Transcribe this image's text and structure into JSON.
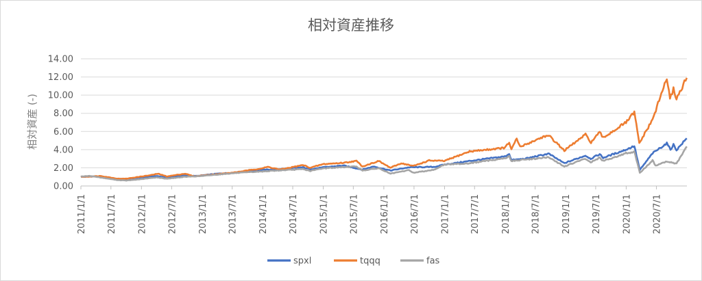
{
  "chart_data": {
    "type": "line",
    "title": "相対資産推移",
    "ylabel": "相対資産 (-)",
    "xlabel": "",
    "ylim": [
      0,
      14
    ],
    "y_ticks": [
      "0.00",
      "2.00",
      "4.00",
      "6.00",
      "8.00",
      "10.00",
      "12.00",
      "14.00"
    ],
    "x_ticks": [
      "2011/1/1",
      "2011/7/1",
      "2012/1/1",
      "2012/7/1",
      "2013/1/1",
      "2013/7/1",
      "2014/1/1",
      "2014/7/1",
      "2015/1/1",
      "2015/7/1",
      "2016/1/1",
      "2016/7/1",
      "2017/1/1",
      "2017/7/1",
      "2018/1/1",
      "2018/7/1",
      "2019/1/1",
      "2019/7/1",
      "2020/1/1",
      "2020/7/1"
    ],
    "grid": true,
    "legend_position": "bottom",
    "series": [
      {
        "name": "spxl",
        "color": "#4472C4",
        "points": [
          [
            "2011/1/1",
            1.0
          ],
          [
            "2011/4/1",
            1.05
          ],
          [
            "2011/8/1",
            0.8
          ],
          [
            "2011/10/1",
            0.75
          ],
          [
            "2012/1/1",
            0.95
          ],
          [
            "2012/4/1",
            1.1
          ],
          [
            "2012/6/1",
            0.95
          ],
          [
            "2012/9/1",
            1.15
          ],
          [
            "2012/12/1",
            1.1
          ],
          [
            "2013/4/1",
            1.35
          ],
          [
            "2013/7/1",
            1.45
          ],
          [
            "2013/12/1",
            1.75
          ],
          [
            "2014/4/1",
            1.85
          ],
          [
            "2014/9/1",
            2.05
          ],
          [
            "2014/10/15",
            1.85
          ],
          [
            "2014/12/31",
            2.05
          ],
          [
            "2015/5/1",
            2.25
          ],
          [
            "2015/8/25",
            1.8
          ],
          [
            "2015/11/1",
            2.15
          ],
          [
            "2016/2/10",
            1.7
          ],
          [
            "2016/6/1",
            2.05
          ],
          [
            "2016/11/1",
            2.1
          ],
          [
            "2016/12/31",
            2.35
          ],
          [
            "2017/6/1",
            2.75
          ],
          [
            "2017/12/31",
            3.25
          ],
          [
            "2018/1/26",
            3.55
          ],
          [
            "2018/2/8",
            2.85
          ],
          [
            "2018/5/1",
            3.0
          ],
          [
            "2018/9/20",
            3.55
          ],
          [
            "2018/12/24",
            2.5
          ],
          [
            "2019/4/30",
            3.35
          ],
          [
            "2019/6/1",
            3.0
          ],
          [
            "2019/7/25",
            3.5
          ],
          [
            "2019/8/15",
            3.1
          ],
          [
            "2019/12/31",
            4.0
          ],
          [
            "2020/2/19",
            4.4
          ],
          [
            "2020/3/23",
            1.75
          ],
          [
            "2020/6/8",
            3.6
          ],
          [
            "2020/9/2",
            4.7
          ],
          [
            "2020/9/24",
            4.0
          ],
          [
            "2020/10/12",
            4.55
          ],
          [
            "2020/10/30",
            3.95
          ],
          [
            "2020/12/31",
            5.25
          ]
        ]
      },
      {
        "name": "tqqq",
        "color": "#ED7D31",
        "points": [
          [
            "2011/1/1",
            1.0
          ],
          [
            "2011/5/1",
            1.1
          ],
          [
            "2011/8/10",
            0.8
          ],
          [
            "2011/10/1",
            0.8
          ],
          [
            "2012/3/1",
            1.2
          ],
          [
            "2012/4/10",
            1.35
          ],
          [
            "2012/6/1",
            1.05
          ],
          [
            "2012/9/20",
            1.35
          ],
          [
            "2012/11/15",
            1.05
          ],
          [
            "2012/12/31",
            1.15
          ],
          [
            "2013/7/1",
            1.45
          ],
          [
            "2013/12/31",
            1.95
          ],
          [
            "2014/2/1",
            2.1
          ],
          [
            "2014/4/15",
            1.8
          ],
          [
            "2014/9/1",
            2.3
          ],
          [
            "2014/10/15",
            2.0
          ],
          [
            "2014/12/31",
            2.4
          ],
          [
            "2015/5/1",
            2.55
          ],
          [
            "2015/7/20",
            2.75
          ],
          [
            "2015/8/25",
            2.15
          ],
          [
            "2015/12/1",
            2.75
          ],
          [
            "2016/2/10",
            2.0
          ],
          [
            "2016/4/15",
            2.5
          ],
          [
            "2016/6/27",
            2.2
          ],
          [
            "2016/10/1",
            2.8
          ],
          [
            "2016/12/31",
            2.75
          ],
          [
            "2017/6/1",
            3.8
          ],
          [
            "2017/12/31",
            4.2
          ],
          [
            "2018/1/26",
            4.8
          ],
          [
            "2018/2/8",
            4.0
          ],
          [
            "2018/3/12",
            5.2
          ],
          [
            "2018/4/2",
            4.3
          ],
          [
            "2018/8/30",
            5.5
          ],
          [
            "2018/10/1",
            5.4
          ],
          [
            "2018/12/24",
            3.9
          ],
          [
            "2019/5/1",
            5.65
          ],
          [
            "2019/6/3",
            4.8
          ],
          [
            "2019/7/25",
            5.9
          ],
          [
            "2019/8/15",
            5.3
          ],
          [
            "2019/12/31",
            7.0
          ],
          [
            "2020/2/19",
            8.1
          ],
          [
            "2020/3/20",
            4.7
          ],
          [
            "2020/6/8",
            7.3
          ],
          [
            "2020/9/2",
            11.9
          ],
          [
            "2020/9/21",
            9.5
          ],
          [
            "2020/10/12",
            10.7
          ],
          [
            "2020/10/30",
            9.6
          ],
          [
            "2020/12/31",
            11.9
          ]
        ]
      },
      {
        "name": "fas",
        "color": "#A5A5A5",
        "points": [
          [
            "2011/1/1",
            1.05
          ],
          [
            "2011/3/1",
            1.1
          ],
          [
            "2011/8/10",
            0.65
          ],
          [
            "2011/10/1",
            0.6
          ],
          [
            "2012/1/1",
            0.75
          ],
          [
            "2012/4/1",
            0.95
          ],
          [
            "2012/6/1",
            0.8
          ],
          [
            "2012/9/15",
            1.0
          ],
          [
            "2012/12/31",
            1.1
          ],
          [
            "2013/7/1",
            1.4
          ],
          [
            "2013/12/31",
            1.6
          ],
          [
            "2014/4/1",
            1.7
          ],
          [
            "2014/9/1",
            1.85
          ],
          [
            "2014/10/15",
            1.65
          ],
          [
            "2014/12/31",
            1.95
          ],
          [
            "2015/7/20",
            2.15
          ],
          [
            "2015/8/25",
            1.7
          ],
          [
            "2015/12/1",
            1.95
          ],
          [
            "2016/2/11",
            1.35
          ],
          [
            "2016/6/1",
            1.75
          ],
          [
            "2016/6/27",
            1.45
          ],
          [
            "2016/10/31",
            1.8
          ],
          [
            "2016/12/31",
            2.35
          ],
          [
            "2017/6/1",
            2.5
          ],
          [
            "2017/12/31",
            3.05
          ],
          [
            "2018/1/26",
            3.25
          ],
          [
            "2018/2/8",
            2.75
          ],
          [
            "2018/5/1",
            2.9
          ],
          [
            "2018/9/20",
            3.15
          ],
          [
            "2018/12/24",
            2.15
          ],
          [
            "2019/4/30",
            3.0
          ],
          [
            "2019/6/1",
            2.6
          ],
          [
            "2019/7/25",
            3.1
          ],
          [
            "2019/8/15",
            2.75
          ],
          [
            "2019/12/31",
            3.6
          ],
          [
            "2020/2/19",
            3.75
          ],
          [
            "2020/3/23",
            1.45
          ],
          [
            "2020/6/8",
            2.8
          ],
          [
            "2020/6/26",
            2.25
          ],
          [
            "2020/9/2",
            2.7
          ],
          [
            "2020/10/30",
            2.45
          ],
          [
            "2020/12/31",
            4.35
          ]
        ]
      }
    ]
  }
}
